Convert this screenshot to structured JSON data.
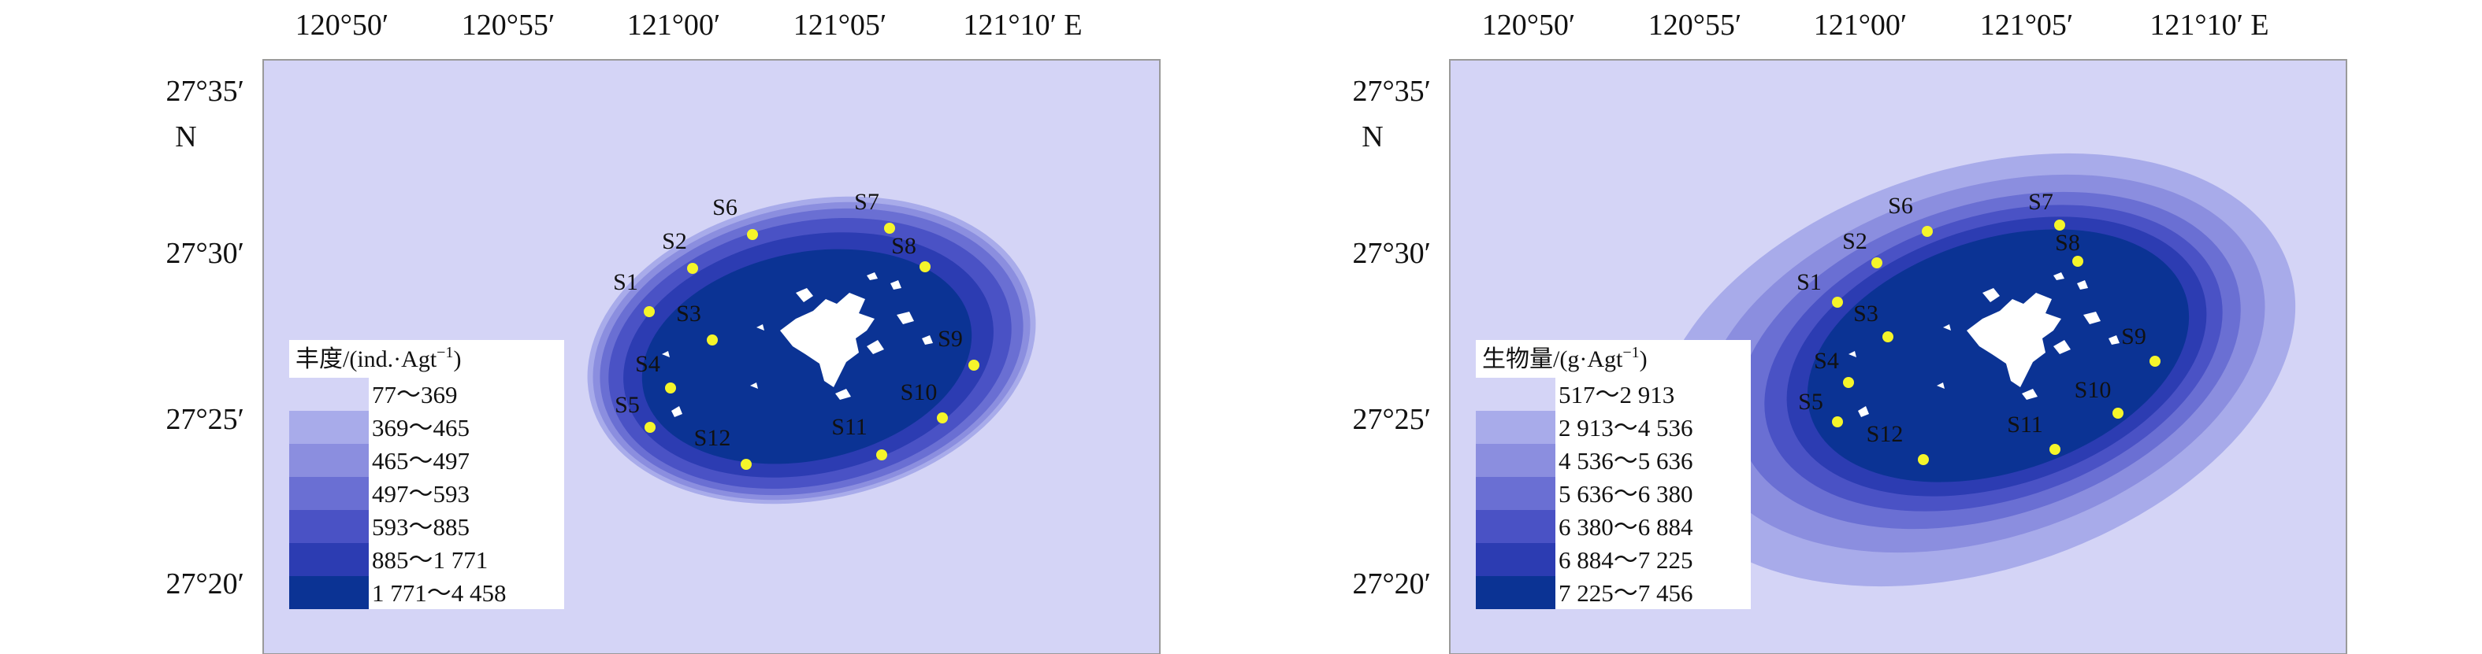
{
  "colors": {
    "background": "#d4d4f6",
    "island": "#ffffff",
    "station": "#f5f52a",
    "frame": "#999999"
  },
  "axes": {
    "x_ticks": [
      "120°50′",
      "120°55′",
      "121°00′",
      "121°05′",
      "121°10′ E"
    ],
    "y_ticks": [
      "27°35′",
      "27°30′",
      "27°25′",
      "27°20′"
    ],
    "y_unit": "N"
  },
  "stations": [
    "S1",
    "S2",
    "S3",
    "S4",
    "S5",
    "S6",
    "S7",
    "S8",
    "S9",
    "S10",
    "S11",
    "S12"
  ],
  "map_data": [
    {
      "id": "abundance",
      "type": "contour-map",
      "legend_title_main": "丰度/(ind.·Agt",
      "legend_title_sup": "−1",
      "legend_title_close": ")",
      "classes": [
        "77～369",
        "369～465",
        "465～497",
        "497～593",
        "593～885",
        "885～1 771",
        "1 771～4 458"
      ],
      "class_colors": [
        "#d4d4f6",
        "#a8abea",
        "#8b8edf",
        "#6a6fd3",
        "#4a52c5",
        "#2c3cb2",
        "#0b3394"
      ]
    },
    {
      "id": "biomass",
      "type": "contour-map",
      "legend_title_main": "生物量/(g·Agt",
      "legend_title_sup": "−1",
      "legend_title_close": ")",
      "classes": [
        "517～2 913",
        "2 913～4 536",
        "4 536～5 636",
        "5 636～6 380",
        "6 380～6 884",
        "6 884～7 225",
        "7 225～7 456"
      ],
      "class_colors": [
        "#d4d4f6",
        "#a8abea",
        "#8b8edf",
        "#6a6fd3",
        "#4a52c5",
        "#2c3cb2",
        "#0b3394"
      ]
    }
  ]
}
